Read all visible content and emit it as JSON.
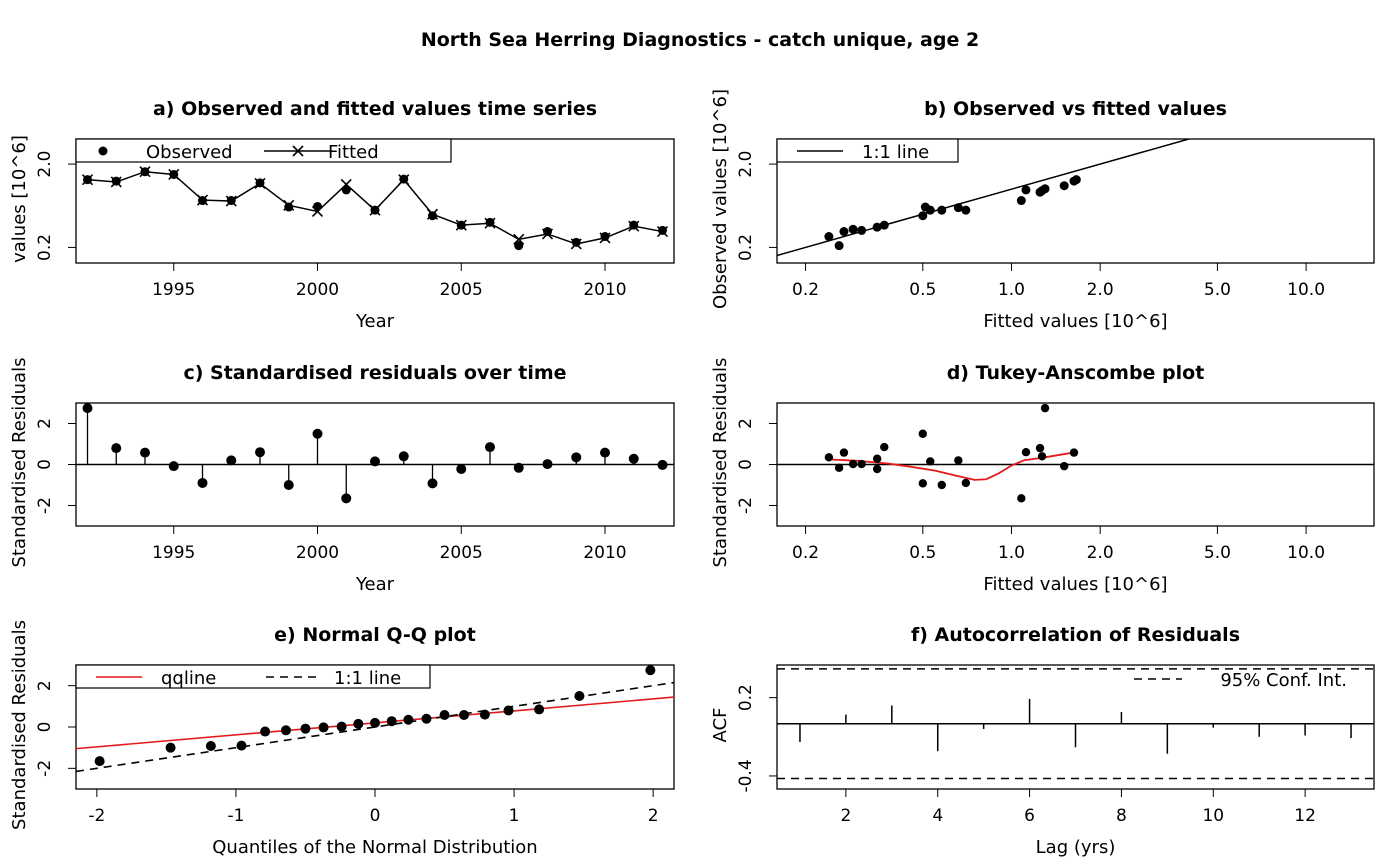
{
  "figure": {
    "title": "North Sea Herring Diagnostics - catch unique, age 2"
  },
  "chart_data": [
    {
      "id": "a",
      "type": "line",
      "title": "a) Observed and fitted values time series",
      "xlabel": "Year",
      "ylabel": "values [10^6]",
      "xlim": [
        1991.6,
        2012.4
      ],
      "ylim": [
        0.13,
        4.0
      ],
      "ylog": true,
      "xticks": [
        1995,
        2000,
        2005,
        2010
      ],
      "yticks": [
        0.2,
        2.0
      ],
      "yticklabels": [
        "0.2",
        "2.0"
      ],
      "legend": {
        "position": "top-left",
        "entries": [
          "Observed",
          "Fitted"
        ]
      },
      "series": [
        {
          "name": "Observed",
          "marker": "dot",
          "x": [
            1992,
            1993,
            1994,
            1995,
            1996,
            1997,
            1998,
            1999,
            2000,
            2001,
            2002,
            2003,
            2004,
            2005,
            2006,
            2007,
            2008,
            2009,
            2010,
            2011,
            2012
          ],
          "y": [
            1.3,
            1.25,
            1.62,
            1.5,
            0.73,
            0.73,
            1.19,
            0.61,
            0.62,
            0.98,
            0.56,
            1.32,
            0.48,
            0.37,
            0.4,
            0.21,
            0.31,
            0.23,
            0.27,
            0.37,
            0.32
          ]
        },
        {
          "name": "Fitted",
          "marker": "cross-line",
          "x": [
            1992,
            1993,
            1994,
            1995,
            1996,
            1997,
            1998,
            1999,
            2000,
            2001,
            2002,
            2003,
            2004,
            2005,
            2006,
            2007,
            2008,
            2009,
            2010,
            2011,
            2012
          ],
          "y": [
            1.3,
            1.22,
            1.62,
            1.5,
            0.74,
            0.72,
            1.17,
            0.64,
            0.54,
            1.14,
            0.56,
            1.3,
            0.5,
            0.37,
            0.39,
            0.25,
            0.29,
            0.22,
            0.26,
            0.36,
            0.31
          ]
        }
      ]
    },
    {
      "id": "b",
      "type": "scatter",
      "title": "b) Observed vs fitted values",
      "xlabel": "Fitted values [10^6]",
      "ylabel": "Observed values [10^6]",
      "xlog": true,
      "ylog": true,
      "xlim": [
        0.16,
        17.0
      ],
      "ylim": [
        0.13,
        4.0
      ],
      "xticks": [
        0.2,
        0.5,
        1.0,
        2.0,
        5.0,
        10.0
      ],
      "xticklabels": [
        "0.2",
        "0.5",
        "1.0",
        "2.0",
        "5.0",
        "10.0"
      ],
      "yticks": [
        0.2,
        2.0
      ],
      "yticklabels": [
        "0.2",
        "2.0"
      ],
      "legend": {
        "position": "top-left",
        "entries": [
          "1:1 line"
        ]
      },
      "reference_line": "1:1 line",
      "x": [
        0.24,
        0.26,
        0.27,
        0.29,
        0.31,
        0.35,
        0.37,
        0.5,
        0.51,
        0.53,
        0.58,
        0.66,
        0.7,
        1.08,
        1.12,
        1.25,
        1.27,
        1.3,
        1.51,
        1.63,
        1.66
      ],
      "y": [
        0.27,
        0.21,
        0.31,
        0.33,
        0.32,
        0.35,
        0.37,
        0.48,
        0.61,
        0.56,
        0.56,
        0.6,
        0.56,
        0.73,
        0.98,
        0.92,
        0.96,
        1.01,
        1.1,
        1.25,
        1.3
      ]
    },
    {
      "id": "c",
      "type": "line",
      "title": "c) Standardised residuals over time",
      "xlabel": "Year",
      "ylabel": "Standardised Residuals",
      "xlim": [
        1991.6,
        2012.4
      ],
      "ylim": [
        -3.0,
        3.0
      ],
      "xticks": [
        1995,
        2000,
        2005,
        2010
      ],
      "yticks": [
        -2,
        0,
        2
      ],
      "x": [
        1992,
        1993,
        1994,
        1995,
        1996,
        1997,
        1998,
        1999,
        2000,
        2001,
        2002,
        2003,
        2004,
        2005,
        2006,
        2007,
        2008,
        2009,
        2010,
        2011,
        2012
      ],
      "y": [
        2.75,
        0.8,
        0.58,
        -0.08,
        -0.9,
        0.2,
        0.6,
        -1.0,
        1.5,
        -1.65,
        0.15,
        0.4,
        -0.92,
        -0.22,
        0.85,
        -0.16,
        0.02,
        0.35,
        0.58,
        0.28,
        -0.02
      ]
    },
    {
      "id": "d",
      "type": "scatter",
      "title": "d) Tukey-Anscombe plot",
      "xlabel": "Fitted values [10^6]",
      "ylabel": "Standardised Residuals",
      "xlog": true,
      "xlim": [
        0.16,
        17.0
      ],
      "ylim": [
        -3.0,
        3.0
      ],
      "xticks": [
        0.2,
        0.5,
        1.0,
        2.0,
        5.0,
        10.0
      ],
      "xticklabels": [
        "0.2",
        "0.5",
        "1.0",
        "2.0",
        "5.0",
        "10.0"
      ],
      "yticks": [
        -2,
        0,
        2
      ],
      "x": [
        0.24,
        0.26,
        0.27,
        0.29,
        0.31,
        0.35,
        0.35,
        0.37,
        0.5,
        0.5,
        0.53,
        0.58,
        0.66,
        0.7,
        1.08,
        1.12,
        1.25,
        1.27,
        1.3,
        1.51,
        1.63
      ],
      "y": [
        0.35,
        -0.16,
        0.58,
        0.02,
        0.02,
        -0.22,
        0.28,
        0.85,
        -0.92,
        1.5,
        0.15,
        -1.0,
        0.2,
        -0.9,
        -1.65,
        0.6,
        0.8,
        0.4,
        2.75,
        -0.08,
        0.58
      ],
      "smoother": {
        "x": [
          0.24,
          0.3,
          0.38,
          0.45,
          0.55,
          0.65,
          0.75,
          0.82,
          0.9,
          1.0,
          1.1,
          1.3,
          1.65
        ],
        "y": [
          0.25,
          0.18,
          0.05,
          -0.1,
          -0.3,
          -0.55,
          -0.75,
          -0.72,
          -0.45,
          -0.05,
          0.2,
          0.35,
          0.6
        ]
      }
    },
    {
      "id": "e",
      "type": "scatter",
      "title": "e) Normal Q-Q plot",
      "xlabel": "Quantiles of the Normal Distribution",
      "ylabel": "Standardised Residuals",
      "xlim": [
        -2.15,
        2.15
      ],
      "ylim": [
        -3.0,
        3.0
      ],
      "xticks": [
        -2,
        -1,
        0,
        1,
        2
      ],
      "yticks": [
        -2,
        0,
        2
      ],
      "legend": {
        "position": "top-left",
        "entries": [
          "qqline",
          "1:1 line"
        ]
      },
      "x": [
        -1.98,
        -1.47,
        -1.18,
        -0.96,
        -0.79,
        -0.64,
        -0.5,
        -0.37,
        -0.24,
        -0.12,
        0.0,
        0.12,
        0.24,
        0.37,
        0.5,
        0.64,
        0.79,
        0.96,
        1.18,
        1.47,
        1.98
      ],
      "y": [
        -1.65,
        -1.0,
        -0.92,
        -0.9,
        -0.22,
        -0.16,
        -0.08,
        -0.02,
        0.02,
        0.15,
        0.2,
        0.28,
        0.35,
        0.4,
        0.58,
        0.58,
        0.6,
        0.8,
        0.85,
        1.5,
        2.75
      ],
      "qqline": {
        "intercept": 0.2,
        "slope": 0.58
      },
      "identity_line": {
        "intercept": 0.0,
        "slope": 1.0
      }
    },
    {
      "id": "f",
      "type": "bar",
      "title": "f) Autocorrelation of Residuals",
      "xlabel": "Lag (yrs)",
      "ylabel": "ACF",
      "xlim": [
        0.5,
        13.5
      ],
      "ylim": [
        -0.5,
        0.45
      ],
      "xticks": [
        2,
        4,
        6,
        8,
        10,
        12
      ],
      "yticks": [
        -0.4,
        0.2
      ],
      "yticklabels": [
        "-0.4",
        "0.2"
      ],
      "legend": {
        "position": "top-right",
        "entries": [
          "95% Conf. Int."
        ]
      },
      "confidence_interval": [
        -0.42,
        0.42
      ],
      "lags": [
        1,
        2,
        3,
        4,
        5,
        6,
        7,
        8,
        9,
        10,
        11,
        12,
        13
      ],
      "values": [
        -0.14,
        0.07,
        0.14,
        -0.21,
        -0.04,
        0.19,
        -0.18,
        0.09,
        -0.23,
        -0.03,
        -0.1,
        -0.09,
        -0.11
      ]
    }
  ]
}
